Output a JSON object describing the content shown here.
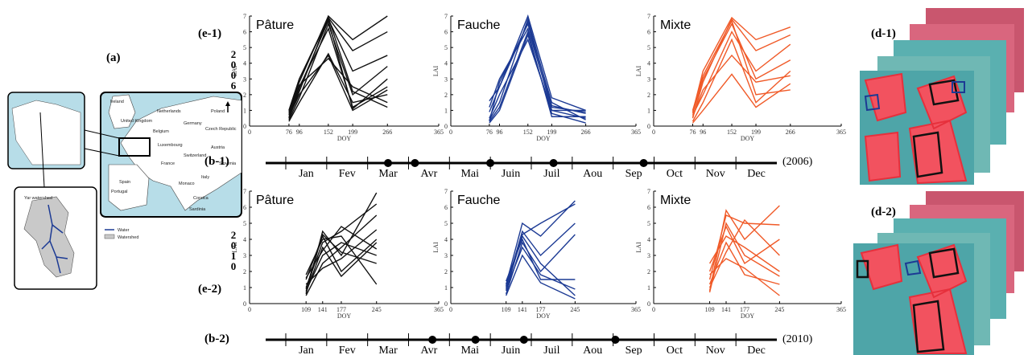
{
  "chart_data": [
    {
      "type": "line",
      "title": "Pâture",
      "xlabel": "DOY",
      "ylabel": "LAI",
      "color": "#111111",
      "x": [
        76,
        96,
        152,
        199,
        266
      ],
      "xlim": [
        0,
        365
      ],
      "ylim": [
        0,
        7
      ],
      "xticks": [
        0,
        76,
        96,
        152,
        199,
        266,
        365
      ],
      "yticks": [
        0,
        1,
        2,
        3,
        4,
        5,
        6,
        7
      ],
      "series": [
        {
          "values": [
            0.9,
            2.8,
            7.0,
            5.5,
            7.0
          ]
        },
        {
          "values": [
            0.5,
            2.2,
            6.9,
            4.8,
            6.0
          ]
        },
        {
          "values": [
            1.0,
            3.0,
            6.8,
            3.5,
            4.5
          ]
        },
        {
          "values": [
            0.4,
            1.8,
            6.5,
            2.0,
            3.8
          ]
        },
        {
          "values": [
            0.7,
            2.5,
            6.2,
            1.2,
            2.5
          ]
        },
        {
          "values": [
            0.6,
            2.0,
            4.5,
            1.0,
            2.3
          ]
        },
        {
          "values": [
            0.8,
            2.6,
            4.3,
            2.5,
            1.5
          ]
        },
        {
          "values": [
            0.3,
            1.5,
            4.6,
            1.5,
            2.0
          ]
        },
        {
          "values": [
            1.0,
            3.0,
            6.9,
            2.2,
            1.2
          ]
        },
        {
          "values": [
            0.5,
            2.4,
            6.7,
            1.1,
            3.0
          ]
        }
      ]
    },
    {
      "type": "line",
      "title": "Fauche",
      "xlabel": "DOY",
      "ylabel": "LAI",
      "color": "#1c3a94",
      "x": [
        76,
        96,
        152,
        199,
        266
      ],
      "xlim": [
        0,
        365
      ],
      "ylim": [
        0,
        7
      ],
      "xticks": [
        0,
        76,
        96,
        152,
        199,
        266,
        365
      ],
      "yticks": [
        0,
        1,
        2,
        3,
        4,
        5,
        6,
        7
      ],
      "series": [
        {
          "values": [
            1.6,
            2.5,
            7.0,
            1.8,
            1.0
          ]
        },
        {
          "values": [
            0.4,
            1.5,
            6.8,
            1.3,
            0.8
          ]
        },
        {
          "values": [
            0.3,
            2.8,
            6.5,
            1.0,
            0.5
          ]
        },
        {
          "values": [
            1.2,
            3.0,
            6.2,
            1.2,
            0.9
          ]
        },
        {
          "values": [
            0.2,
            1.0,
            5.8,
            0.8,
            0.2
          ]
        },
        {
          "values": [
            0.5,
            2.0,
            5.5,
            1.0,
            1.0
          ]
        },
        {
          "values": [
            0.3,
            1.2,
            6.0,
            0.6,
            0.6
          ]
        },
        {
          "values": [
            0.9,
            2.5,
            6.6,
            1.5,
            0.4
          ]
        }
      ]
    },
    {
      "type": "line",
      "title": "Mixte",
      "xlabel": "DOY",
      "ylabel": "LAI",
      "color": "#f05a28",
      "x": [
        76,
        96,
        152,
        199,
        266
      ],
      "xlim": [
        0,
        365
      ],
      "ylim": [
        0,
        7
      ],
      "xticks": [
        0,
        76,
        96,
        152,
        199,
        266,
        365
      ],
      "yticks": [
        0,
        1,
        2,
        3,
        4,
        5,
        6,
        7
      ],
      "series": [
        {
          "values": [
            0.9,
            3.5,
            6.9,
            5.5,
            6.3
          ]
        },
        {
          "values": [
            0.5,
            2.8,
            6.8,
            4.8,
            5.8
          ]
        },
        {
          "values": [
            0.8,
            3.0,
            6.5,
            3.0,
            4.2
          ]
        },
        {
          "values": [
            0.3,
            1.5,
            5.5,
            1.5,
            3.5
          ]
        },
        {
          "values": [
            0.6,
            2.3,
            4.5,
            2.8,
            3.2
          ]
        },
        {
          "values": [
            0.2,
            1.0,
            3.3,
            1.2,
            2.7
          ]
        },
        {
          "values": [
            1.0,
            3.2,
            6.7,
            2.0,
            2.3
          ]
        },
        {
          "values": [
            0.7,
            2.0,
            6.0,
            3.5,
            5.2
          ]
        }
      ]
    },
    {
      "type": "line",
      "title": "Pâture",
      "xlabel": "DOY",
      "ylabel": "LAI",
      "color": "#111111",
      "x": [
        109,
        141,
        177,
        245
      ],
      "xlim": [
        0,
        365
      ],
      "ylim": [
        0,
        7
      ],
      "xticks": [
        0,
        109,
        141,
        177,
        245,
        365
      ],
      "yticks": [
        0,
        1,
        2,
        3,
        4,
        5,
        6,
        7
      ],
      "series": [
        {
          "values": [
            0.6,
            4.5,
            3.0,
            6.9
          ]
        },
        {
          "values": [
            1.0,
            3.8,
            4.5,
            6.2
          ]
        },
        {
          "values": [
            0.5,
            2.5,
            3.5,
            5.5
          ]
        },
        {
          "values": [
            1.5,
            4.2,
            2.0,
            4.0
          ]
        },
        {
          "values": [
            0.8,
            3.0,
            3.8,
            3.0
          ]
        },
        {
          "values": [
            1.8,
            4.0,
            4.2,
            1.2
          ]
        },
        {
          "values": [
            0.7,
            3.5,
            1.7,
            3.8
          ]
        },
        {
          "values": [
            1.2,
            2.2,
            2.8,
            4.6
          ]
        },
        {
          "values": [
            0.9,
            4.3,
            3.2,
            2.5
          ]
        },
        {
          "values": [
            1.6,
            3.3,
            4.8,
            3.4
          ]
        }
      ]
    },
    {
      "type": "line",
      "title": "Fauche",
      "xlabel": "DOY",
      "ylabel": "LAI",
      "color": "#1c3a94",
      "x": [
        109,
        141,
        177,
        245
      ],
      "xlim": [
        0,
        365
      ],
      "ylim": [
        0,
        7
      ],
      "xticks": [
        0,
        109,
        141,
        177,
        245,
        365
      ],
      "yticks": [
        0,
        1,
        2,
        3,
        4,
        5,
        6,
        7
      ],
      "series": [
        {
          "values": [
            1.2,
            5.0,
            4.2,
            6.4
          ]
        },
        {
          "values": [
            0.8,
            4.3,
            5.0,
            6.2
          ]
        },
        {
          "values": [
            1.0,
            4.5,
            3.0,
            5.0
          ]
        },
        {
          "values": [
            0.6,
            3.8,
            2.0,
            4.3
          ]
        },
        {
          "values": [
            1.4,
            4.0,
            1.5,
            1.5
          ]
        },
        {
          "values": [
            0.9,
            3.5,
            1.8,
            0.9
          ]
        },
        {
          "values": [
            1.1,
            4.2,
            2.5,
            0.5
          ]
        },
        {
          "values": [
            0.5,
            3.0,
            1.3,
            0.3
          ]
        }
      ]
    },
    {
      "type": "line",
      "title": "Mixte",
      "xlabel": "DOY",
      "ylabel": "LAI",
      "color": "#f05a28",
      "x": [
        109,
        141,
        177,
        245
      ],
      "xlim": [
        0,
        365
      ],
      "ylim": [
        0,
        7
      ],
      "xticks": [
        0,
        109,
        141,
        177,
        245,
        365
      ],
      "yticks": [
        0,
        1,
        2,
        3,
        4,
        5,
        6,
        7
      ],
      "series": [
        {
          "values": [
            0.8,
            5.8,
            4.0,
            6.1
          ]
        },
        {
          "values": [
            1.5,
            5.5,
            5.0,
            4.9
          ]
        },
        {
          "values": [
            2.0,
            4.8,
            2.5,
            4.0
          ]
        },
        {
          "values": [
            1.0,
            3.2,
            5.2,
            3.0
          ]
        },
        {
          "values": [
            2.5,
            4.2,
            3.5,
            2.0
          ]
        },
        {
          "values": [
            1.2,
            3.8,
            1.8,
            1.2
          ]
        },
        {
          "values": [
            0.7,
            5.0,
            3.0,
            1.7
          ]
        },
        {
          "values": [
            1.8,
            2.8,
            2.2,
            0.5
          ]
        }
      ]
    }
  ],
  "panels": {
    "a": "(a)",
    "e1": "(e-1)",
    "e2": "(e-2)",
    "b1": "(b-1)",
    "b2": "(b-2)",
    "d1": "(d-1)",
    "d2": "(d-2)"
  },
  "years": [
    "2006",
    "2010"
  ],
  "year_labels": [
    "(2006)",
    "(2010)"
  ],
  "months": [
    "Jan",
    "Fev",
    "Mar",
    "Avr",
    "Mai",
    "Juin",
    "Juil",
    "Aou",
    "Sep",
    "Oct",
    "Nov",
    "Dec"
  ],
  "map": {
    "inset_title": "Yar watershed",
    "labels": [
      "Ireland",
      "United Kingdom",
      "Netherlands",
      "Germany",
      "Poland",
      "Belgium",
      "Luxembourg",
      "Czech Republic",
      "France",
      "Switzerland",
      "Austria",
      "Slovenia",
      "Italy",
      "Monaco",
      "Portugal",
      "Spain",
      "Corsica",
      "Sardinia"
    ],
    "legend": [
      "Water",
      "Watershed"
    ]
  }
}
